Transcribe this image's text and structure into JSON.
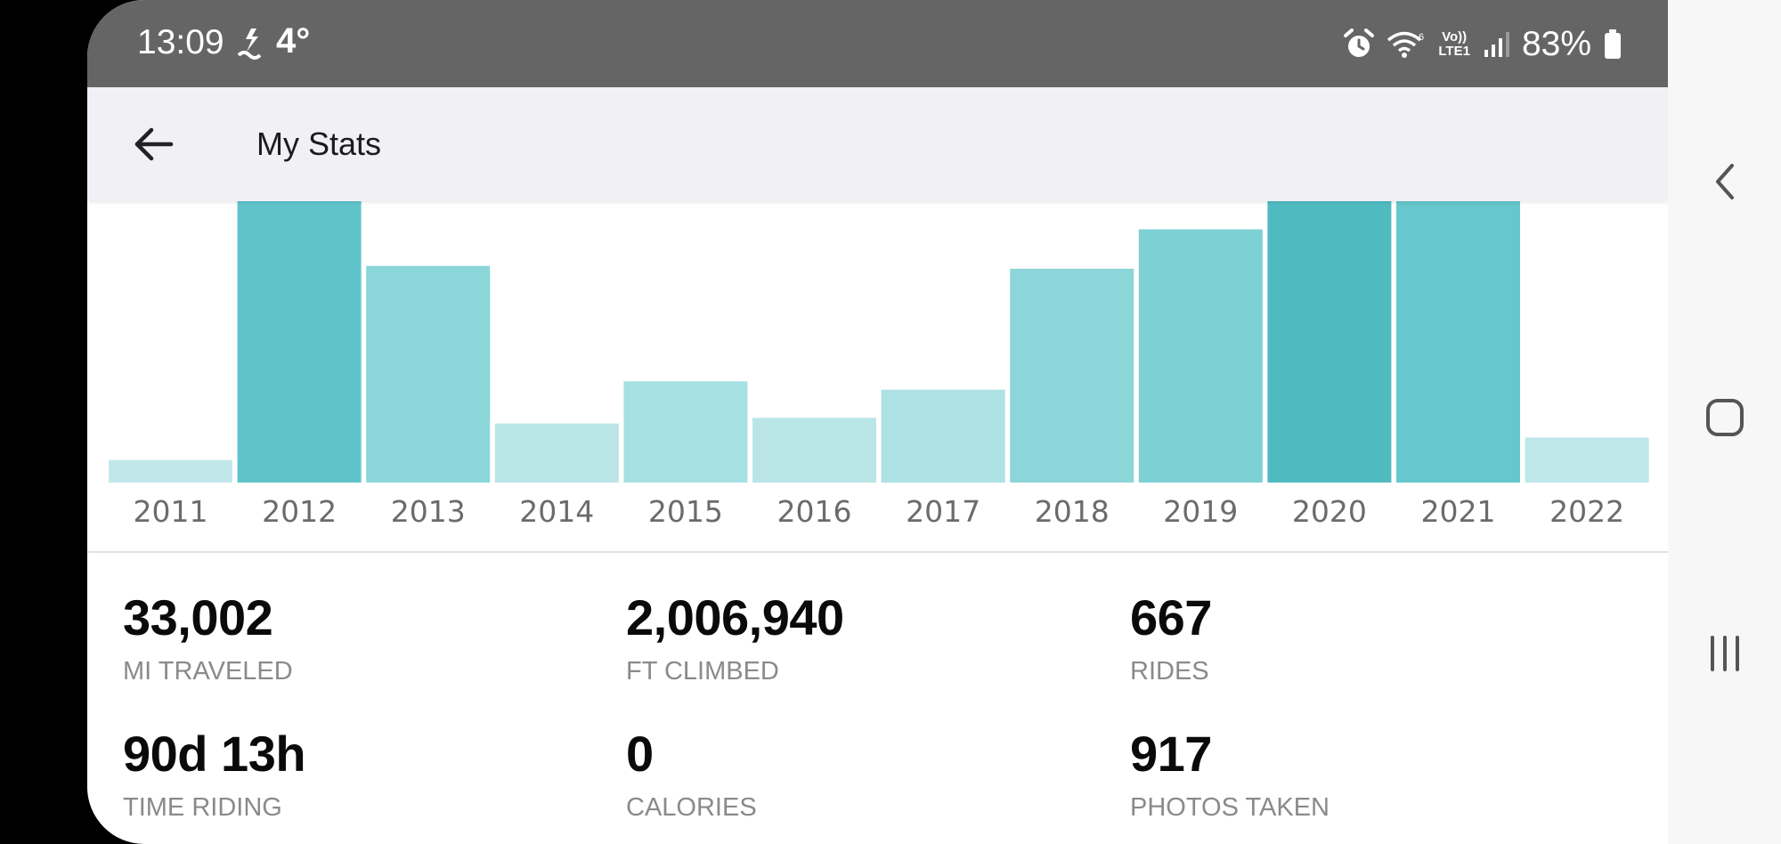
{
  "status_bar": {
    "time": "13:09",
    "temperature": "4°",
    "battery_percent": "83%",
    "volte_line1": "Vo))",
    "volte_line2": "LTE1",
    "icons": [
      "weather-icon",
      "alarm-icon",
      "wifi-icon",
      "volte-icon",
      "signal-icon",
      "battery-icon"
    ]
  },
  "app_bar": {
    "title": "My Stats",
    "back_icon": "arrow-left-icon"
  },
  "chart_data": {
    "type": "bar",
    "categories": [
      "2011",
      "2012",
      "2013",
      "2014",
      "2015",
      "2016",
      "2017",
      "2018",
      "2019",
      "2020",
      "2021",
      "2022"
    ],
    "values": [
      8,
      100,
      77,
      21,
      36,
      23,
      33,
      76,
      90,
      100,
      100,
      16
    ],
    "colors": [
      "#c2e7ea",
      "#5fc4ca",
      "#8ad6d9",
      "#bae5e7",
      "#a6e0e2",
      "#b9e5e7",
      "#ade1e3",
      "#8cd5d8",
      "#7dd0d4",
      "#4fbbc1",
      "#66c7cc",
      "#bee7e9"
    ],
    "ylim": [
      0,
      100
    ],
    "title": "",
    "xlabel": "",
    "ylabel": ""
  },
  "stats": [
    {
      "value": "33,002",
      "label": "MI TRAVELED"
    },
    {
      "value": "2,006,940",
      "label": "FT CLIMBED"
    },
    {
      "value": "667",
      "label": "RIDES"
    },
    {
      "value": "90d 13h",
      "label": "TIME RIDING"
    },
    {
      "value": "0",
      "label": "CALORIES"
    },
    {
      "value": "917",
      "label": "PHOTOS TAKEN"
    }
  ],
  "nav_bar": {
    "back_icon": "chevron-left-icon",
    "home_icon": "home-square-icon",
    "recents_icon": "recents-icon"
  }
}
